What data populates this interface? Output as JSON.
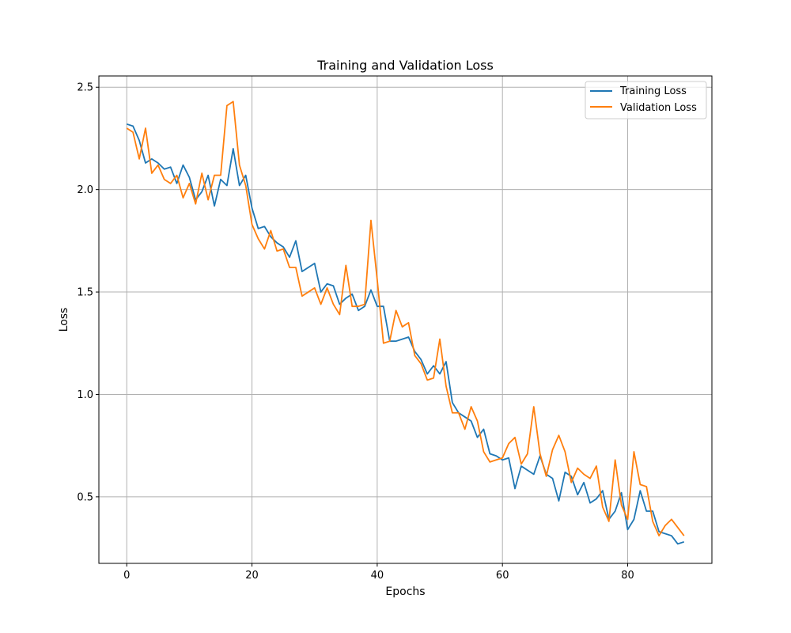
{
  "chart_data": {
    "type": "line",
    "title": "Training and Validation Loss",
    "xlabel": "Epochs",
    "ylabel": "Loss",
    "xlim": [
      -4.45,
      93.45
    ],
    "ylim": [
      0.175,
      2.555
    ],
    "x_ticks": [
      0,
      20,
      40,
      60,
      80
    ],
    "y_ticks": [
      0.5,
      1.0,
      1.5,
      2.0,
      2.5
    ],
    "x_tick_labels": [
      "0",
      "20",
      "40",
      "60",
      "80"
    ],
    "y_tick_labels": [
      "0.5",
      "1.0",
      "1.5",
      "2.0",
      "2.5"
    ],
    "grid": true,
    "legend_position": "top-right",
    "x": [
      0,
      1,
      2,
      3,
      4,
      5,
      6,
      7,
      8,
      9,
      10,
      11,
      12,
      13,
      14,
      15,
      16,
      17,
      18,
      19,
      20,
      21,
      22,
      23,
      24,
      25,
      26,
      27,
      28,
      29,
      30,
      31,
      32,
      33,
      34,
      35,
      36,
      37,
      38,
      39,
      40,
      41,
      42,
      43,
      44,
      45,
      46,
      47,
      48,
      49,
      50,
      51,
      52,
      53,
      54,
      55,
      56,
      57,
      58,
      59,
      60,
      61,
      62,
      63,
      64,
      65,
      66,
      67,
      68,
      69,
      70,
      71,
      72,
      73,
      74,
      75,
      76,
      77,
      78,
      79,
      80,
      81,
      82,
      83,
      84,
      85,
      86,
      87,
      88,
      89
    ],
    "series": [
      {
        "name": "Training Loss",
        "color": "#1f77b4",
        "values": [
          2.32,
          2.31,
          2.24,
          2.13,
          2.15,
          2.13,
          2.1,
          2.11,
          2.03,
          2.12,
          2.06,
          1.95,
          1.99,
          2.07,
          1.92,
          2.05,
          2.02,
          2.2,
          2.02,
          2.07,
          1.91,
          1.81,
          1.82,
          1.77,
          1.74,
          1.72,
          1.67,
          1.75,
          1.6,
          1.62,
          1.64,
          1.5,
          1.54,
          1.53,
          1.44,
          1.47,
          1.49,
          1.41,
          1.43,
          1.51,
          1.43,
          1.43,
          1.26,
          1.26,
          1.27,
          1.28,
          1.21,
          1.17,
          1.1,
          1.14,
          1.1,
          1.16,
          0.96,
          0.91,
          0.89,
          0.87,
          0.79,
          0.83,
          0.71,
          0.7,
          0.68,
          0.69,
          0.54,
          0.65,
          0.63,
          0.61,
          0.7,
          0.61,
          0.59,
          0.48,
          0.62,
          0.6,
          0.51,
          0.57,
          0.47,
          0.49,
          0.53,
          0.39,
          0.43,
          0.52,
          0.34,
          0.39,
          0.53,
          0.43,
          0.43,
          0.33,
          0.32,
          0.31,
          0.27,
          0.28
        ]
      },
      {
        "name": "Validation Loss",
        "color": "#ff7f0e",
        "values": [
          2.3,
          2.28,
          2.15,
          2.3,
          2.08,
          2.12,
          2.05,
          2.03,
          2.07,
          1.96,
          2.03,
          1.93,
          2.08,
          1.95,
          2.07,
          2.07,
          2.41,
          2.43,
          2.12,
          2.02,
          1.83,
          1.76,
          1.71,
          1.8,
          1.7,
          1.71,
          1.62,
          1.62,
          1.48,
          1.5,
          1.52,
          1.44,
          1.52,
          1.44,
          1.39,
          1.63,
          1.43,
          1.43,
          1.44,
          1.85,
          1.56,
          1.25,
          1.26,
          1.41,
          1.33,
          1.35,
          1.19,
          1.15,
          1.07,
          1.08,
          1.27,
          1.04,
          0.91,
          0.91,
          0.83,
          0.94,
          0.87,
          0.72,
          0.67,
          0.68,
          0.69,
          0.76,
          0.79,
          0.66,
          0.71,
          0.94,
          0.71,
          0.6,
          0.73,
          0.8,
          0.72,
          0.57,
          0.64,
          0.61,
          0.59,
          0.65,
          0.45,
          0.38,
          0.68,
          0.46,
          0.39,
          0.72,
          0.56,
          0.55,
          0.38,
          0.31,
          0.36,
          0.39,
          0.35,
          0.31
        ]
      }
    ]
  }
}
